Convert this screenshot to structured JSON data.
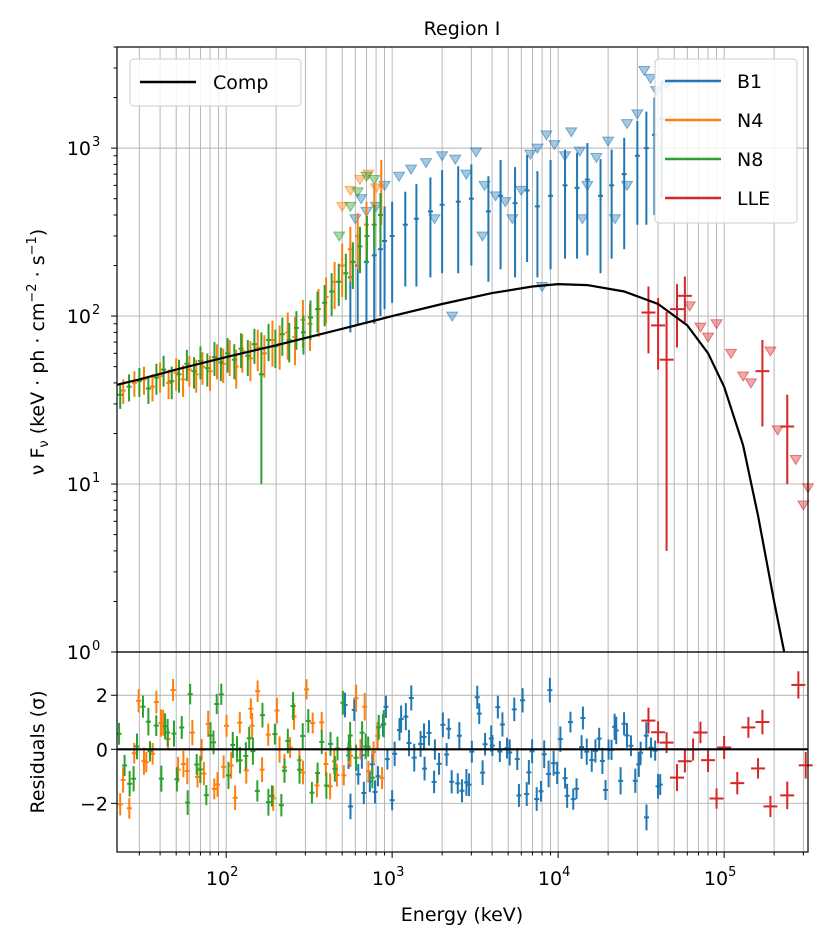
{
  "chart_data": {
    "type": "scatter",
    "title": "Region I",
    "xlabel": "Energy (keV)",
    "x_scale": "log",
    "xlim": [
      22,
      320000
    ],
    "x_tick_labels": [
      {
        "value": 100,
        "base": "10",
        "exp": "2"
      },
      {
        "value": 1000,
        "base": "10",
        "exp": "3"
      },
      {
        "value": 10000,
        "base": "10",
        "exp": "4"
      },
      {
        "value": 100000,
        "base": "10",
        "exp": "5"
      }
    ],
    "grid": true,
    "top_panel": {
      "ylabel_parts": [
        "ν F",
        "ν",
        " (keV · ph · cm",
        "−2",
        " · s",
        "−1",
        ")"
      ],
      "y_scale": "log",
      "ylim": [
        1,
        4000
      ],
      "y_tick_labels": [
        {
          "value": 1,
          "base": "10",
          "exp": "0"
        },
        {
          "value": 10,
          "base": "10",
          "exp": "1"
        },
        {
          "value": 100,
          "base": "10",
          "exp": "2"
        },
        {
          "value": 1000,
          "base": "10",
          "exp": "3"
        }
      ],
      "model": {
        "name": "Comp",
        "color": "#000000",
        "x": [
          22,
          30,
          50,
          100,
          200,
          500,
          1000,
          2000,
          4000,
          7000,
          10000,
          15000,
          25000,
          40000,
          60000,
          80000,
          100000,
          130000,
          160000,
          200000,
          230000
        ],
        "y": [
          39,
          42,
          48,
          57,
          67,
          84,
          100,
          118,
          137,
          150,
          155,
          153,
          140,
          118,
          88,
          60,
          38,
          17,
          6.5,
          2.0,
          0.95
        ]
      },
      "legend_left": [
        {
          "label": "Comp",
          "color": "#000000"
        }
      ],
      "legend_right": [
        {
          "label": "B1",
          "color": "#1f77b4"
        },
        {
          "label": "N4",
          "color": "#ff7f0e"
        },
        {
          "label": "N8",
          "color": "#2ca02c"
        },
        {
          "label": "LLE",
          "color": "#d62728"
        }
      ],
      "series": [
        {
          "name": "B1",
          "color": "#1f77b4",
          "points": [
            [
              560,
              170,
              90
            ],
            [
              620,
              200,
              110
            ],
            [
              700,
              210,
              120
            ],
            [
              780,
              230,
              140
            ],
            [
              850,
              250,
              150
            ],
            [
              900,
              280,
              170
            ],
            [
              1000,
              300,
              180
            ],
            [
              1200,
              350,
              200
            ],
            [
              1400,
              380,
              230
            ],
            [
              1700,
              420,
              250
            ],
            [
              2000,
              460,
              280
            ],
            [
              2500,
              480,
              300
            ],
            [
              3000,
              500,
              300
            ],
            [
              3800,
              420,
              260
            ],
            [
              4500,
              520,
              330
            ],
            [
              5500,
              470,
              300
            ],
            [
              6500,
              560,
              350
            ],
            [
              7500,
              450,
              280
            ],
            [
              9000,
              520,
              330
            ],
            [
              11000,
              600,
              380
            ],
            [
              13000,
              580,
              360
            ],
            [
              15000,
              650,
              420
            ],
            [
              18000,
              520,
              340
            ],
            [
              21000,
              600,
              380
            ],
            [
              25000,
              700,
              450
            ],
            [
              30000,
              900,
              550
            ],
            [
              34000,
              1000,
              650
            ],
            [
              38000,
              1200,
              800
            ],
            [
              42000,
              1500,
              1000
            ]
          ],
          "upper_limits": [
            [
              600,
              380
            ],
            [
              650,
              500
            ],
            [
              700,
              420
            ],
            [
              800,
              450
            ],
            [
              900,
              600
            ],
            [
              1100,
              680
            ],
            [
              1300,
              750
            ],
            [
              1600,
              820
            ],
            [
              2000,
              900
            ],
            [
              2400,
              860
            ],
            [
              2800,
              700
            ],
            [
              3200,
              950
            ],
            [
              3600,
              600
            ],
            [
              4200,
              520
            ],
            [
              4800,
              480
            ],
            [
              5300,
              380
            ],
            [
              6000,
              560
            ],
            [
              6800,
              920
            ],
            [
              7500,
              1000
            ],
            [
              8500,
              1200
            ],
            [
              9500,
              1050
            ],
            [
              11000,
              900
            ],
            [
              12000,
              1250
            ],
            [
              13500,
              960
            ],
            [
              15000,
              600
            ],
            [
              17000,
              880
            ],
            [
              20000,
              1100
            ],
            [
              22000,
              380
            ],
            [
              26000,
              1400
            ],
            [
              30000,
              1600
            ],
            [
              33000,
              2900
            ],
            [
              36000,
              2600
            ],
            [
              39000,
              2200
            ],
            [
              45000,
              2400
            ],
            [
              3500,
              300
            ],
            [
              2300,
              100
            ],
            [
              1800,
              380
            ],
            [
              8000,
              150
            ],
            [
              14000,
              380
            ],
            [
              26000,
              600
            ]
          ]
        },
        {
          "name": "N4",
          "color": "#ff7f0e",
          "points": [
            [
              24,
              36,
              6
            ],
            [
              28,
              40,
              7
            ],
            [
              32,
              42,
              8
            ],
            [
              36,
              38,
              7
            ],
            [
              40,
              44,
              9
            ],
            [
              45,
              40,
              8
            ],
            [
              50,
              46,
              10
            ],
            [
              55,
              42,
              9
            ],
            [
              60,
              48,
              10
            ],
            [
              66,
              45,
              10
            ],
            [
              72,
              50,
              11
            ],
            [
              80,
              47,
              11
            ],
            [
              88,
              55,
              13
            ],
            [
              96,
              52,
              12
            ],
            [
              105,
              58,
              14
            ],
            [
              115,
              50,
              13
            ],
            [
              125,
              62,
              16
            ],
            [
              140,
              56,
              15
            ],
            [
              155,
              65,
              18
            ],
            [
              170,
              60,
              17
            ],
            [
              190,
              72,
              22
            ],
            [
              210,
              68,
              20
            ],
            [
              235,
              80,
              25
            ],
            [
              260,
              75,
              24
            ],
            [
              290,
              95,
              30
            ],
            [
              320,
              90,
              28
            ],
            [
              360,
              110,
              35
            ],
            [
              400,
              130,
              40
            ],
            [
              450,
              160,
              50
            ],
            [
              500,
              200,
              70
            ],
            [
              560,
              250,
              90
            ],
            [
              620,
              300,
              110
            ],
            [
              700,
              350,
              130
            ],
            [
              780,
              450,
              160
            ],
            [
              860,
              600,
              250
            ]
          ],
          "upper_limits": [
            [
              500,
              450
            ],
            [
              560,
              560
            ],
            [
              640,
              650
            ],
            [
              720,
              700
            ],
            [
              800,
              580
            ]
          ]
        },
        {
          "name": "N8",
          "color": "#2ca02c",
          "points": [
            [
              23,
              34,
              6
            ],
            [
              26,
              38,
              7
            ],
            [
              30,
              41,
              8
            ],
            [
              34,
              37,
              7
            ],
            [
              38,
              43,
              9
            ],
            [
              42,
              48,
              10
            ],
            [
              47,
              41,
              9
            ],
            [
              52,
              45,
              10
            ],
            [
              58,
              52,
              11
            ],
            [
              64,
              47,
              10
            ],
            [
              70,
              54,
              12
            ],
            [
              77,
              49,
              11
            ],
            [
              85,
              57,
              13
            ],
            [
              93,
              53,
              12
            ],
            [
              102,
              60,
              14
            ],
            [
              112,
              55,
              13
            ],
            [
              123,
              64,
              15
            ],
            [
              135,
              58,
              14
            ],
            [
              148,
              68,
              16
            ],
            [
              163,
              45,
              35
            ],
            [
              180,
              72,
              18
            ],
            [
              198,
              66,
              17
            ],
            [
              218,
              78,
              20
            ],
            [
              240,
              72,
              19
            ],
            [
              265,
              85,
              22
            ],
            [
              292,
              80,
              21
            ],
            [
              322,
              98,
              26
            ],
            [
              355,
              110,
              30
            ],
            [
              392,
              120,
              33
            ],
            [
              432,
              140,
              40
            ],
            [
              477,
              160,
              45
            ],
            [
              526,
              180,
              55
            ],
            [
              580,
              210,
              65
            ],
            [
              640,
              260,
              80
            ],
            [
              705,
              300,
              95
            ],
            [
              780,
              350,
              110
            ],
            [
              850,
              400,
              140
            ]
          ],
          "upper_limits": [
            [
              480,
              300
            ],
            [
              560,
              450
            ],
            [
              620,
              550
            ],
            [
              700,
              680
            ],
            [
              780,
              650
            ]
          ]
        },
        {
          "name": "LLE",
          "color": "#d62728",
          "points": [
            [
              35000,
              105,
              45
            ],
            [
              40000,
              88,
              40
            ],
            [
              45000,
              55,
              51
            ],
            [
              52000,
              110,
              45
            ],
            [
              58000,
              132,
              40
            ],
            [
              70000,
              null,
              null
            ],
            [
              170000,
              47,
              25
            ],
            [
              240000,
              22,
              12
            ]
          ],
          "upper_limits": [
            [
              62000,
              115
            ],
            [
              72000,
              86
            ],
            [
              80000,
              75
            ],
            [
              90000,
              90
            ],
            [
              110000,
              60
            ],
            [
              130000,
              44
            ],
            [
              145000,
              40
            ],
            [
              190000,
              62
            ],
            [
              210000,
              21
            ],
            [
              270000,
              14
            ],
            [
              300000,
              7.5
            ],
            [
              320000,
              9.5
            ]
          ]
        }
      ]
    },
    "bottom_panel": {
      "ylabel": "Residuals (σ)",
      "ylim": [
        -3.8,
        3.6
      ],
      "y_tick_labels": [
        {
          "value": -2,
          "text": "−2"
        },
        {
          "value": 0,
          "text": "0"
        },
        {
          "value": 2,
          "text": "2"
        }
      ],
      "zero_line_color": "#000000"
    }
  }
}
